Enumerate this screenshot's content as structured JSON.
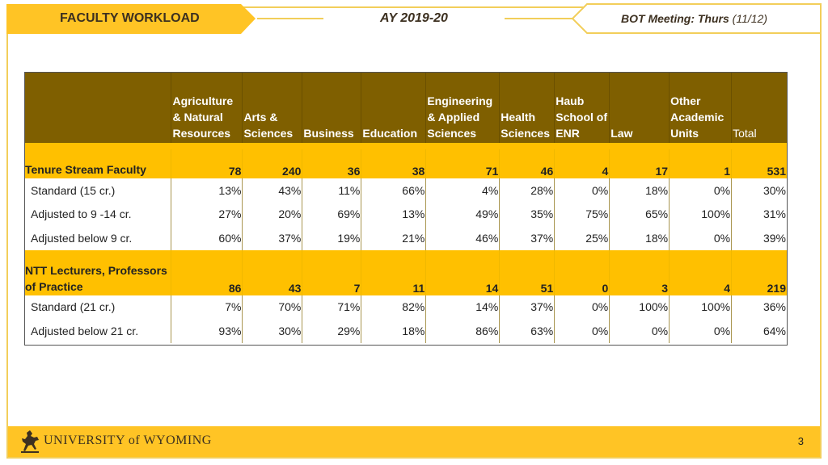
{
  "header": {
    "left_title": "FACULTY WORKLOAD",
    "center_title": "AY 2019-20",
    "right_bold": "BOT Meeting: Thurs",
    "right_date": "(11/12)"
  },
  "table": {
    "columns": [
      [
        "Agriculture",
        "& Natural",
        "Resources"
      ],
      [
        "Arts &",
        "Sciences"
      ],
      [
        "Business"
      ],
      [
        "Education"
      ],
      [
        "Engineering",
        "& Applied",
        "Sciences"
      ],
      [
        "Health",
        "Sciences"
      ],
      [
        "Haub",
        "School of",
        "ENR"
      ],
      [
        "Law"
      ],
      [
        "Other",
        "Academic",
        "Units"
      ],
      [
        "Total"
      ]
    ],
    "groups": [
      {
        "label": [
          "Tenure Stream Faculty"
        ],
        "values": [
          "78",
          "240",
          "36",
          "38",
          "71",
          "46",
          "4",
          "17",
          "1",
          "531"
        ],
        "rows": [
          {
            "label": "Standard (15 cr.)",
            "values": [
              "13%",
              "43%",
              "11%",
              "66%",
              "4%",
              "28%",
              "0%",
              "18%",
              "0%",
              "30%"
            ]
          },
          {
            "label": "Adjusted to 9 -14 cr.",
            "values": [
              "27%",
              "20%",
              "69%",
              "13%",
              "49%",
              "35%",
              "75%",
              "65%",
              "100%",
              "31%"
            ]
          },
          {
            "label": "Adjusted below 9 cr.",
            "values": [
              "60%",
              "37%",
              "19%",
              "21%",
              "46%",
              "37%",
              "25%",
              "18%",
              "0%",
              "39%"
            ]
          }
        ]
      },
      {
        "label": [
          "NTT Lecturers, Professors",
          "of Practice"
        ],
        "values": [
          "86",
          "43",
          "7",
          "11",
          "14",
          "51",
          "0",
          "3",
          "4",
          "219"
        ],
        "rows": [
          {
            "label": "Standard (21 cr.)",
            "values": [
              "7%",
              "70%",
              "71%",
              "82%",
              "14%",
              "37%",
              "0%",
              "100%",
              "100%",
              "36%"
            ]
          },
          {
            "label": "Adjusted below 21 cr.",
            "values": [
              "93%",
              "30%",
              "29%",
              "18%",
              "86%",
              "63%",
              "0%",
              "0%",
              "0%",
              "64%"
            ]
          }
        ]
      }
    ]
  },
  "footer": {
    "university_name": "UNIVERSITY of WYOMING",
    "page_number": "3"
  },
  "colors": {
    "gold": "#ffc000",
    "brown": "#7f5f00",
    "frame": "#f2ce5a"
  }
}
